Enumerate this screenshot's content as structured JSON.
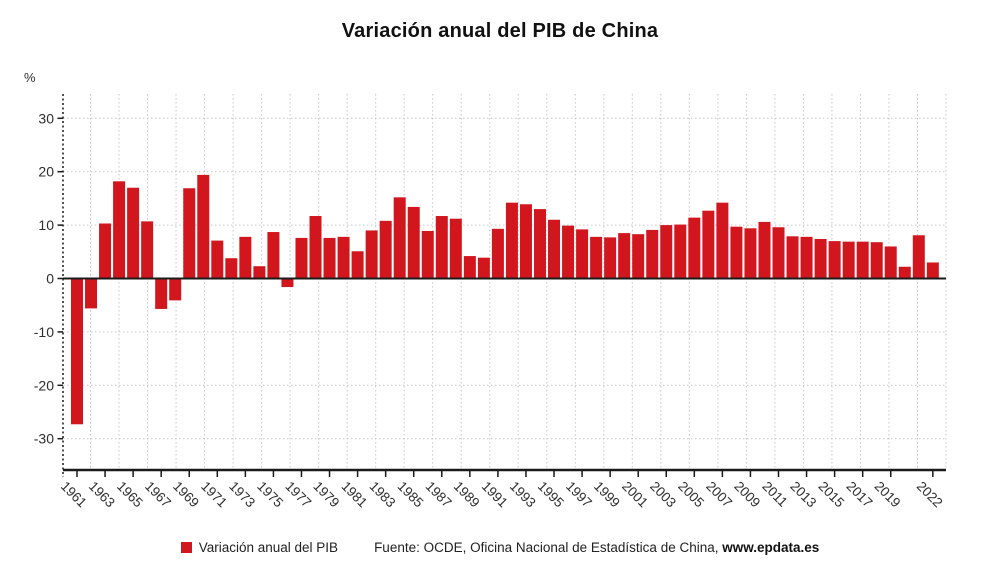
{
  "title": "Variación anual del PIB de China",
  "y_axis_unit_label": "%",
  "legend": {
    "label": "Variación anual del PIB",
    "swatch_color": "#d2161e"
  },
  "source": {
    "prefix": "Fuente: OCDE, Oficina Nacional de Estadística de China, ",
    "site": "www.epdata.es"
  },
  "colors": {
    "bar": "#d2161e",
    "axis": "#1a1a1a",
    "grid": "#c6c6c6",
    "text": "#2e2e2e"
  },
  "chart_data": {
    "type": "bar",
    "title": "Variación anual del PIB de China",
    "series_name": "Variación anual del PIB",
    "ylabel": "%",
    "xlabel": "",
    "ylim": [
      -35.9,
      34.5
    ],
    "yticks": [
      30,
      20,
      10,
      0,
      -10,
      -20,
      -30
    ],
    "grid": "dotted",
    "legend_position": "bottom",
    "x": [
      1961,
      1962,
      1963,
      1964,
      1965,
      1966,
      1967,
      1968,
      1969,
      1970,
      1971,
      1972,
      1973,
      1974,
      1975,
      1976,
      1977,
      1978,
      1979,
      1980,
      1981,
      1982,
      1983,
      1984,
      1985,
      1986,
      1987,
      1988,
      1989,
      1990,
      1991,
      1992,
      1993,
      1994,
      1995,
      1996,
      1997,
      1998,
      1999,
      2000,
      2001,
      2002,
      2003,
      2004,
      2005,
      2006,
      2007,
      2008,
      2009,
      2010,
      2011,
      2012,
      2013,
      2014,
      2015,
      2016,
      2017,
      2018,
      2019,
      2020,
      2021,
      2022
    ],
    "values": [
      -27.3,
      -5.6,
      10.3,
      18.2,
      17.0,
      10.7,
      -5.7,
      -4.1,
      16.9,
      19.4,
      7.1,
      3.8,
      7.8,
      2.3,
      8.7,
      -1.6,
      7.6,
      11.7,
      7.6,
      7.8,
      5.1,
      9.0,
      10.8,
      15.2,
      13.4,
      8.9,
      11.7,
      11.2,
      4.2,
      3.9,
      9.3,
      14.2,
      13.9,
      13.0,
      11.0,
      9.9,
      9.2,
      7.8,
      7.7,
      8.5,
      8.3,
      9.1,
      10.0,
      10.1,
      11.4,
      12.7,
      14.2,
      9.7,
      9.4,
      10.6,
      9.6,
      7.9,
      7.8,
      7.4,
      7.0,
      6.9,
      6.9,
      6.8,
      6.0,
      2.2,
      8.1,
      3.0
    ],
    "xtick_labels": [
      "1961",
      "1963",
      "1965",
      "1967",
      "1969",
      "1971",
      "1973",
      "1975",
      "1977",
      "1979",
      "1981",
      "1983",
      "1985",
      "1987",
      "1989",
      "1991",
      "1993",
      "1995",
      "1997",
      "1999",
      "2001",
      "2003",
      "2005",
      "2007",
      "2009",
      "2011",
      "2013",
      "2015",
      "2017",
      "2019",
      "2022"
    ]
  }
}
